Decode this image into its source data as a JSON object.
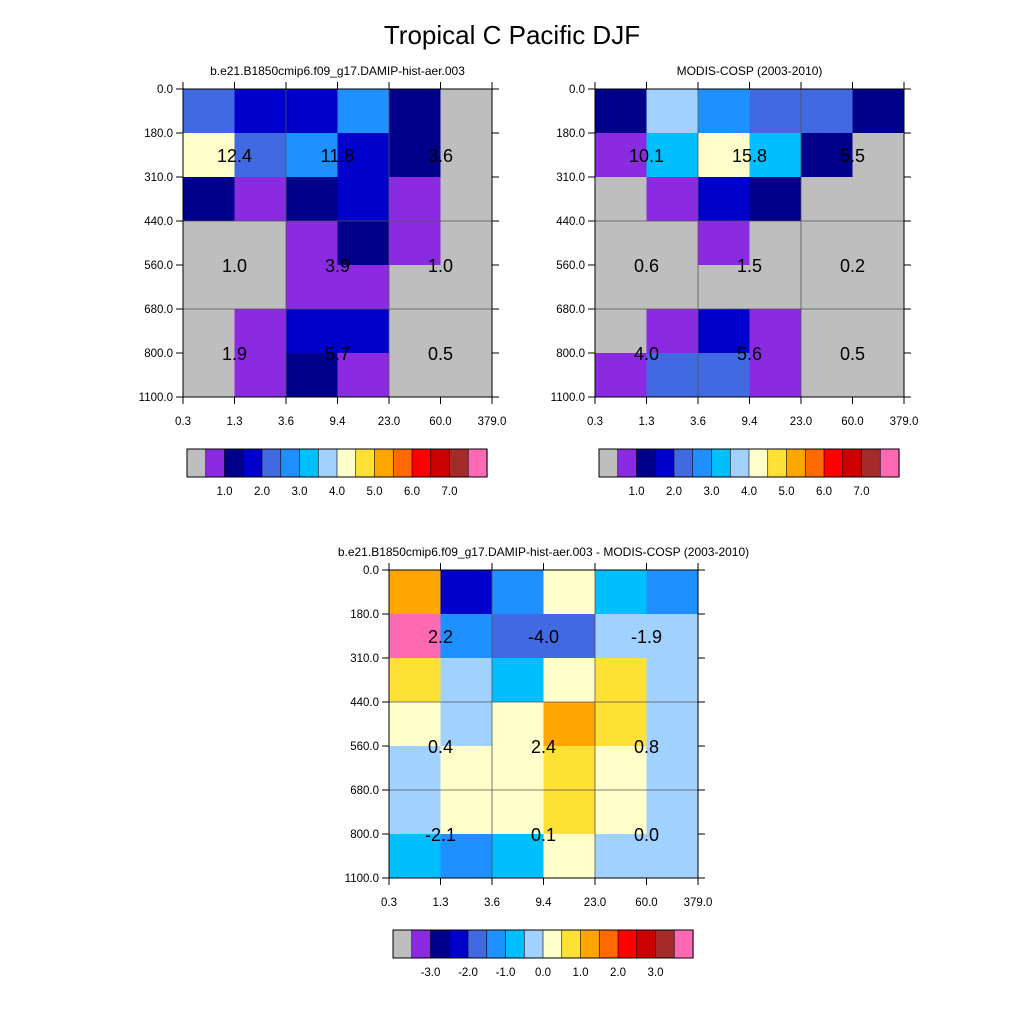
{
  "title": "Tropical C Pacific DJF",
  "shared": {
    "x_ticks": [
      "0.3",
      "1.3",
      "3.6",
      "9.4",
      "23.0",
      "60.0",
      "379.0"
    ],
    "y_ticks": [
      "0.0",
      "180.0",
      "310.0",
      "440.0",
      "560.0",
      "680.0",
      "800.0",
      "1100.0"
    ]
  },
  "colors": {
    "abs_palette": [
      "#bebebe",
      "#8a2be2",
      "#00008b",
      "#0000cd",
      "#4169e1",
      "#1e90ff",
      "#00bfff",
      "#a0d1ff",
      "#ffffcc",
      "#ffe135",
      "#ffa500",
      "#ff6a00",
      "#ff0000",
      "#cd0000",
      "#a52a2a",
      "#ff69b4"
    ],
    "diff_palette": [
      "#bebebe",
      "#8a2be2",
      "#00008b",
      "#0000cd",
      "#4169e1",
      "#1e90ff",
      "#00bfff",
      "#a0d1ff",
      "#ffffcc",
      "#ffe135",
      "#ffa500",
      "#ff6a00",
      "#ff0000",
      "#cd0000",
      "#a52a2a",
      "#ff69b4"
    ]
  },
  "chart_data": [
    {
      "type": "heatmap",
      "id": "model",
      "title": "b.e21.B1850cmip6.f09_g17.DAMIP-hist-aer.003",
      "x_ticks": [
        "0.3",
        "1.3",
        "3.6",
        "9.4",
        "23.0",
        "60.0",
        "379.0"
      ],
      "y_ticks": [
        "0.0",
        "180.0",
        "310.0",
        "440.0",
        "560.0",
        "680.0",
        "800.0",
        "1100.0"
      ],
      "colorbar_labels": [
        "1.0",
        "2.0",
        "3.0",
        "4.0",
        "5.0",
        "6.0",
        "7.0"
      ],
      "cells": [
        [
          4,
          3,
          3,
          5,
          2,
          0
        ],
        [
          8,
          4,
          5,
          3,
          2,
          0
        ],
        [
          2,
          1,
          2,
          3,
          1,
          0
        ],
        [
          0,
          0,
          1,
          2,
          1,
          0
        ],
        [
          0,
          0,
          1,
          1,
          0,
          0
        ],
        [
          0,
          1,
          3,
          3,
          0,
          0
        ],
        [
          0,
          1,
          2,
          1,
          0,
          0
        ]
      ],
      "block_values": [
        [
          "12.4",
          "11.8",
          "3.6"
        ],
        [
          "1.0",
          "3.9",
          "1.0"
        ],
        [
          "1.9",
          "5.7",
          "0.5"
        ]
      ]
    },
    {
      "type": "heatmap",
      "id": "obs",
      "title": "MODIS-COSP (2003-2010)",
      "x_ticks": [
        "0.3",
        "1.3",
        "3.6",
        "9.4",
        "23.0",
        "60.0",
        "379.0"
      ],
      "y_ticks": [
        "0.0",
        "180.0",
        "310.0",
        "440.0",
        "560.0",
        "680.0",
        "800.0",
        "1100.0"
      ],
      "colorbar_labels": [
        "1.0",
        "2.0",
        "3.0",
        "4.0",
        "5.0",
        "6.0",
        "7.0"
      ],
      "cells": [
        [
          2,
          7,
          5,
          4,
          4,
          2
        ],
        [
          1,
          6,
          8,
          6,
          2,
          0
        ],
        [
          0,
          1,
          3,
          2,
          0,
          0
        ],
        [
          0,
          0,
          1,
          0,
          0,
          0
        ],
        [
          0,
          0,
          0,
          0,
          0,
          0
        ],
        [
          0,
          1,
          3,
          1,
          0,
          0
        ],
        [
          1,
          4,
          4,
          1,
          0,
          0
        ]
      ],
      "block_values": [
        [
          "10.1",
          "15.8",
          "5.5"
        ],
        [
          "0.6",
          "1.5",
          "0.2"
        ],
        [
          "4.0",
          "5.6",
          "0.5"
        ]
      ]
    },
    {
      "type": "heatmap",
      "id": "diff",
      "title": "b.e21.B1850cmip6.f09_g17.DAMIP-hist-aer.003 - MODIS-COSP (2003-2010)",
      "x_ticks": [
        "0.3",
        "1.3",
        "3.6",
        "9.4",
        "23.0",
        "60.0",
        "379.0"
      ],
      "y_ticks": [
        "0.0",
        "180.0",
        "310.0",
        "440.0",
        "560.0",
        "680.0",
        "800.0",
        "1100.0"
      ],
      "colorbar_labels": [
        "-3.0",
        "-2.0",
        "-1.0",
        "0.0",
        "1.0",
        "2.0",
        "3.0"
      ],
      "cells": [
        [
          10,
          3,
          5,
          8,
          6,
          5
        ],
        [
          15,
          5,
          4,
          4,
          7,
          7
        ],
        [
          9,
          7,
          6,
          8,
          9,
          7
        ],
        [
          8,
          7,
          8,
          10,
          9,
          7
        ],
        [
          7,
          8,
          8,
          9,
          8,
          7
        ],
        [
          7,
          8,
          8,
          9,
          8,
          7
        ],
        [
          6,
          5,
          6,
          8,
          7,
          7
        ]
      ],
      "block_values": [
        [
          "2.2",
          "-4.0",
          "-1.9"
        ],
        [
          "0.4",
          "2.4",
          "0.8"
        ],
        [
          "-2.1",
          "0.1",
          "0.0"
        ]
      ]
    }
  ]
}
